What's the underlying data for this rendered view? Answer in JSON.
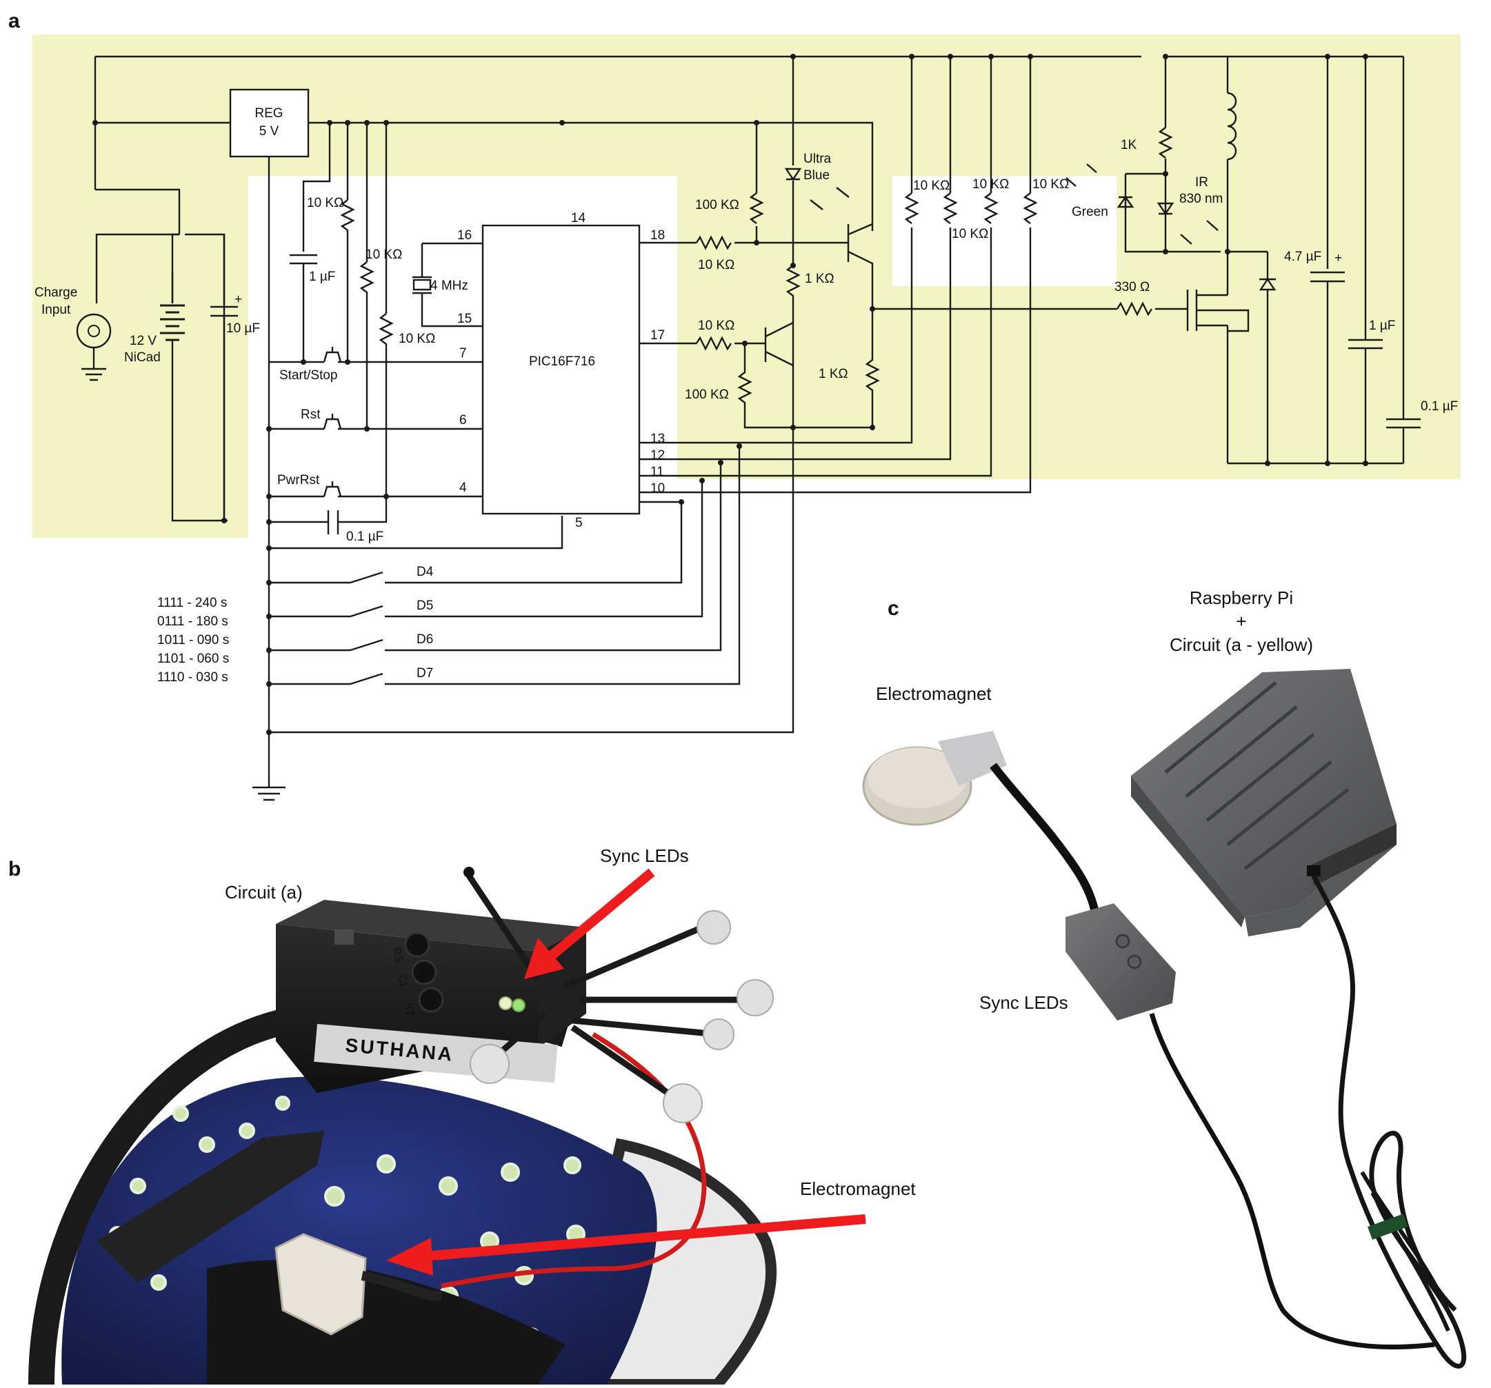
{
  "panels": {
    "a": "a",
    "b": "b",
    "c": "c"
  },
  "circuit": {
    "reg_line1": "REG",
    "reg_line2": "5 V",
    "chip_label": "PIC16F716",
    "pins": {
      "p16": "16",
      "p15": "15",
      "p14": "14",
      "p7": "7",
      "p6": "6",
      "p4": "4",
      "p5": "5",
      "p18": "18",
      "p17": "17",
      "p13": "13",
      "p12": "12",
      "p11": "11",
      "p10": "10"
    },
    "charge_input_line1": "Charge",
    "charge_input_line2": "Input",
    "battery_line1": "12 V",
    "battery_line2": "NiCad",
    "cap_10uf": "10 µF",
    "cap_1uf_left": "1 µF",
    "cap_01uf_bottom": "0.1 µF",
    "res_10k_a": "10 KΩ",
    "res_10k_b": "10 KΩ",
    "res_10k_c": "10 KΩ",
    "crystal": "4 MHz",
    "switch_start": "Start/Stop",
    "switch_rst": "Rst",
    "switch_pwr": "PwrRst",
    "res_100k_top": "100 KΩ",
    "res_10k_18": "10 KΩ",
    "res_10k_17": "10 KΩ",
    "res_100k_bottom": "100 KΩ",
    "res_1k_mid": "1 KΩ",
    "res_1k_right": "1 KΩ",
    "led_ultra_line1": "Ultra",
    "led_ultra_line2": "Blue",
    "res_10k_g1": "10 KΩ",
    "res_10k_g2": "10 KΩ",
    "res_10k_g3": "10 KΩ",
    "res_10k_g4": "10 KΩ",
    "led_green": "Green",
    "res_1k_top": "1K",
    "led_ir_line1": "IR",
    "led_ir_line2": "830 nm",
    "res_330": "330 Ω",
    "cap_47uf": "4.7 µF",
    "cap_1uf_right": "1 µF",
    "cap_01uf_right": "0.1 µF",
    "dip_labels": [
      "D4",
      "D5",
      "D6",
      "D7"
    ],
    "timing_table": [
      "1111 - 240 s",
      "0111 - 180 s",
      "1011 - 090 s",
      "1101 - 060 s",
      "1110 - 030 s"
    ]
  },
  "photo_b": {
    "circuit_label": "Circuit (a)",
    "sync_label": "Sync LEDs",
    "electromagnet_label": "Electromagnet",
    "box_text": "SUTHANA",
    "button_labels": [
      "RS",
      "CL",
      "ST"
    ]
  },
  "photo_c": {
    "rpi_line1": "Raspberry Pi",
    "rpi_line2": "+",
    "rpi_line3": "Circuit (a - yellow)",
    "electromagnet_label": "Electromagnet",
    "sync_label": "Sync LEDs"
  },
  "colors": {
    "highlight": "#f3f4c4",
    "arrow": "#ee1c1c",
    "cap_fabric": "#24306e",
    "device_gray": "#5f6062"
  }
}
